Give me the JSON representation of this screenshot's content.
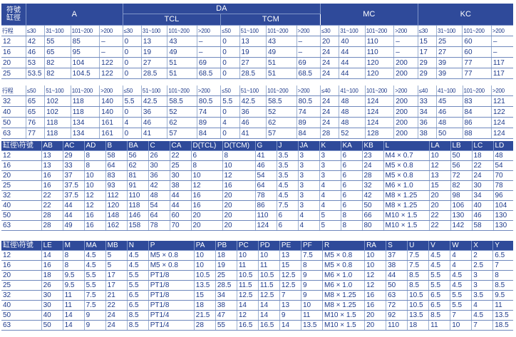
{
  "t1": {
    "symbol_label": "符號",
    "bore_label": "缸徑",
    "groups": [
      "A",
      "DA",
      "MC",
      "KC"
    ],
    "subgroups": [
      "TCL",
      "TCM"
    ],
    "ranges4": [
      "≤30",
      "31~100",
      "101~200",
      ">200"
    ],
    "ranges_da": [
      "≤30",
      "31~100",
      "101~200",
      ">200",
      "≤50",
      "51~100",
      "101~200",
      ">200"
    ],
    "rows": [
      [
        "12",
        "42",
        "55",
        "85",
        "–",
        "0",
        "13",
        "43",
        "–",
        "0",
        "13",
        "43",
        "–",
        "20",
        "40",
        "110",
        "–",
        "15",
        "25",
        "60",
        "–"
      ],
      [
        "16",
        "46",
        "65",
        "95",
        "–",
        "0",
        "19",
        "49",
        "–",
        "0",
        "19",
        "49",
        "–",
        "24",
        "44",
        "110",
        "–",
        "17",
        "27",
        "60",
        "–"
      ],
      [
        "20",
        "53",
        "82",
        "104",
        "122",
        "0",
        "27",
        "51",
        "69",
        "0",
        "27",
        "51",
        "69",
        "24",
        "44",
        "120",
        "200",
        "29",
        "39",
        "77",
        "117"
      ],
      [
        "25",
        "53.5",
        "82",
        "104.5",
        "122",
        "0",
        "28.5",
        "51",
        "68.5",
        "0",
        "28.5",
        "51",
        "68.5",
        "24",
        "44",
        "120",
        "200",
        "29",
        "39",
        "77",
        "117"
      ]
    ]
  },
  "t2": {
    "stroke_label": "行程",
    "ranges": [
      "≤50",
      "51~100",
      "101~200",
      ">200",
      "≤50",
      "51~100",
      "101~200",
      ">200",
      "≤50",
      "51~100",
      "101~200",
      ">200",
      "≤40",
      "41~100",
      "101~200",
      ">200",
      "≤40",
      "41~100",
      "101~200",
      ">200"
    ],
    "rows": [
      [
        "32",
        "65",
        "102",
        "118",
        "140",
        "5.5",
        "42.5",
        "58.5",
        "80.5",
        "5.5",
        "42.5",
        "58.5",
        "80.5",
        "24",
        "48",
        "124",
        "200",
        "33",
        "45",
        "83",
        "121"
      ],
      [
        "40",
        "65",
        "102",
        "118",
        "140",
        "0",
        "36",
        "52",
        "74",
        "0",
        "36",
        "52",
        "74",
        "24",
        "48",
        "124",
        "200",
        "34",
        "46",
        "84",
        "122"
      ],
      [
        "50",
        "76",
        "118",
        "134",
        "161",
        "4",
        "46",
        "62",
        "89",
        "4",
        "46",
        "62",
        "89",
        "24",
        "48",
        "124",
        "200",
        "36",
        "48",
        "86",
        "124"
      ],
      [
        "63",
        "77",
        "118",
        "134",
        "161",
        "0",
        "41",
        "57",
        "84",
        "0",
        "41",
        "57",
        "84",
        "28",
        "52",
        "128",
        "200",
        "38",
        "50",
        "88",
        "124"
      ]
    ]
  },
  "t3": {
    "headers": [
      "缸徑\\符號",
      "AB",
      "AC",
      "AD",
      "B",
      "BA",
      "C",
      "CA",
      "D(TCL)",
      "D(TCM)",
      "G",
      "J",
      "JA",
      "K",
      "KA",
      "KB",
      "L",
      "LA",
      "LB",
      "LC",
      "LD"
    ],
    "rows": [
      [
        "12",
        "13",
        "29",
        "8",
        "58",
        "56",
        "26",
        "22",
        "6",
        "8",
        "41",
        "3.5",
        "3",
        "3",
        "6",
        "23",
        "M4 × 0.7",
        "10",
        "50",
        "18",
        "48"
      ],
      [
        "16",
        "13",
        "33",
        "8",
        "64",
        "62",
        "30",
        "25",
        "8",
        "10",
        "46",
        "3.5",
        "3",
        "3",
        "6",
        "24",
        "M5 × 0.8",
        "12",
        "56",
        "22",
        "54"
      ],
      [
        "20",
        "16",
        "37",
        "10",
        "83",
        "81",
        "36",
        "30",
        "10",
        "12",
        "54",
        "3.5",
        "3",
        "3",
        "6",
        "28",
        "M5 × 0.8",
        "13",
        "72",
        "24",
        "70"
      ],
      [
        "25",
        "16",
        "37.5",
        "10",
        "93",
        "91",
        "42",
        "38",
        "12",
        "16",
        "64",
        "4.5",
        "3",
        "4",
        "6",
        "32",
        "M6 × 1.0",
        "15",
        "82",
        "30",
        "78"
      ],
      [
        "32",
        "22",
        "37.5",
        "12",
        "112",
        "110",
        "48",
        "44",
        "16",
        "20",
        "78",
        "4.5",
        "3",
        "4",
        "6",
        "42",
        "M8 × 1.25",
        "20",
        "98",
        "34",
        "96"
      ],
      [
        "40",
        "22",
        "44",
        "12",
        "120",
        "118",
        "54",
        "44",
        "16",
        "20",
        "86",
        "7.5",
        "3",
        "4",
        "6",
        "50",
        "M8 × 1.25",
        "20",
        "106",
        "40",
        "104"
      ],
      [
        "50",
        "28",
        "44",
        "16",
        "148",
        "146",
        "64",
        "60",
        "20",
        "20",
        "110",
        "6",
        "4",
        "5",
        "8",
        "66",
        "M10 × 1.5",
        "22",
        "130",
        "46",
        "130"
      ],
      [
        "63",
        "28",
        "49",
        "16",
        "162",
        "158",
        "78",
        "70",
        "20",
        "20",
        "124",
        "6",
        "4",
        "5",
        "8",
        "80",
        "M10 × 1.5",
        "22",
        "142",
        "58",
        "130"
      ]
    ]
  },
  "t4": {
    "headers": [
      "缸徑\\符號",
      "LE",
      "M",
      "MA",
      "MB",
      "N",
      "P",
      "PA",
      "PB",
      "PC",
      "PD",
      "PE",
      "PF",
      "R",
      "RA",
      "S",
      "U",
      "V",
      "W",
      "X",
      "Y"
    ],
    "rows": [
      [
        "12",
        "14",
        "8",
        "4.5",
        "5",
        "4.5",
        "M5 × 0.8",
        "10",
        "18",
        "10",
        "10",
        "13",
        "7.5",
        "M5 × 0.8",
        "10",
        "37",
        "7.5",
        "4.5",
        "4",
        "2",
        "6.5"
      ],
      [
        "16",
        "16",
        "8",
        "4.5",
        "5",
        "4.5",
        "M5 × 0.8",
        "10",
        "19",
        "11",
        "11",
        "15",
        "8",
        "M5 × 0.8",
        "10",
        "38",
        "7.5",
        "4.5",
        "4",
        "2.5",
        "7"
      ],
      [
        "20",
        "18",
        "9.5",
        "5.5",
        "17",
        "5.5",
        "PT1/8",
        "10.5",
        "25",
        "10.5",
        "10.5",
        "12.5",
        "9",
        "M6 × 1.0",
        "12",
        "44",
        "8.5",
        "5.5",
        "4.5",
        "3",
        "8"
      ],
      [
        "25",
        "26",
        "9.5",
        "5.5",
        "17",
        "5.5",
        "PT1/8",
        "13.5",
        "28.5",
        "11.5",
        "11.5",
        "12.5",
        "9",
        "M6 × 1.0",
        "12",
        "50",
        "8.5",
        "5.5",
        "4.5",
        "3",
        "8.5"
      ],
      [
        "32",
        "30",
        "11",
        "7.5",
        "21",
        "6.5",
        "PT1/8",
        "15",
        "34",
        "12.5",
        "12.5",
        "7",
        "9",
        "M8 × 1.25",
        "16",
        "63",
        "10.5",
        "6.5",
        "5.5",
        "3.5",
        "9.5"
      ],
      [
        "40",
        "30",
        "11",
        "7.5",
        "22",
        "6.5",
        "PT1/8",
        "18",
        "38",
        "14",
        "14",
        "13",
        "10",
        "M8 × 1.25",
        "16",
        "72",
        "10.5",
        "6.5",
        "5.5",
        "4",
        "11"
      ],
      [
        "50",
        "40",
        "14",
        "9",
        "24",
        "8.5",
        "PT1/4",
        "21.5",
        "47",
        "12",
        "14",
        "9",
        "11",
        "M10 × 1.5",
        "20",
        "92",
        "13.5",
        "8.5",
        "7",
        "4.5",
        "13.5"
      ],
      [
        "63",
        "50",
        "14",
        "9",
        "24",
        "8.5",
        "PT1/4",
        "28",
        "55",
        "16.5",
        "16.5",
        "14",
        "13.5",
        "M10 × 1.5",
        "20",
        "110",
        "18",
        "11",
        "10",
        "7",
        "18.5"
      ]
    ]
  }
}
